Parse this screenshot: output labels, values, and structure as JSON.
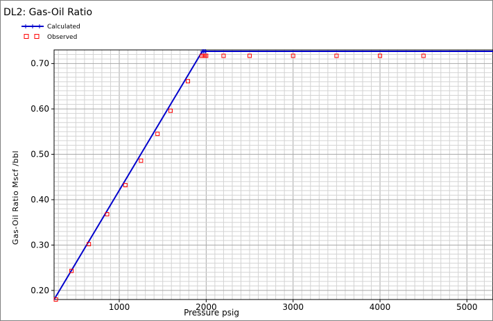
{
  "chart_data": {
    "type": "line",
    "title": "DL2: Gas-Oil Ratio",
    "xlabel": "Pressure  psig",
    "ylabel": "Gas-Oil Ratio  Mscf /bbl",
    "xlim": [
      250,
      5300
    ],
    "ylim": [
      0.18,
      0.73
    ],
    "x_major_ticks": [
      1000,
      2000,
      3000,
      4000,
      5000
    ],
    "x_tick_labels": [
      "1000",
      "2000",
      "3000",
      "4000",
      "5000"
    ],
    "y_major_ticks": [
      0.2,
      0.3,
      0.4,
      0.5,
      0.6,
      0.7
    ],
    "y_tick_labels": [
      "0.20",
      "0.30",
      "0.40",
      "0.50",
      "0.60",
      "0.70"
    ],
    "grid": true,
    "legend_position": "top-left",
    "series": [
      {
        "name": "Calculated",
        "style": "line-with-plus-markers",
        "color": "#0000cc",
        "x": [
          250,
          1955,
          5300
        ],
        "y": [
          0.18,
          0.727,
          0.727
        ],
        "marker_x": [
          1955,
          1968,
          1980,
          1993
        ],
        "marker_y": [
          0.727,
          0.727,
          0.727,
          0.727
        ]
      },
      {
        "name": "Observed",
        "style": "hollow-square-markers",
        "color": "#ff0000",
        "x": [
          270,
          450,
          650,
          860,
          1070,
          1250,
          1440,
          1590,
          1790,
          1950,
          1970,
          1985,
          2000,
          2200,
          2500,
          3000,
          3500,
          4000,
          4500
        ],
        "y": [
          0.18,
          0.243,
          0.302,
          0.368,
          0.432,
          0.486,
          0.545,
          0.596,
          0.661,
          0.717,
          0.717,
          0.717,
          0.717,
          0.717,
          0.717,
          0.717,
          0.717,
          0.717,
          0.717
        ]
      }
    ]
  }
}
